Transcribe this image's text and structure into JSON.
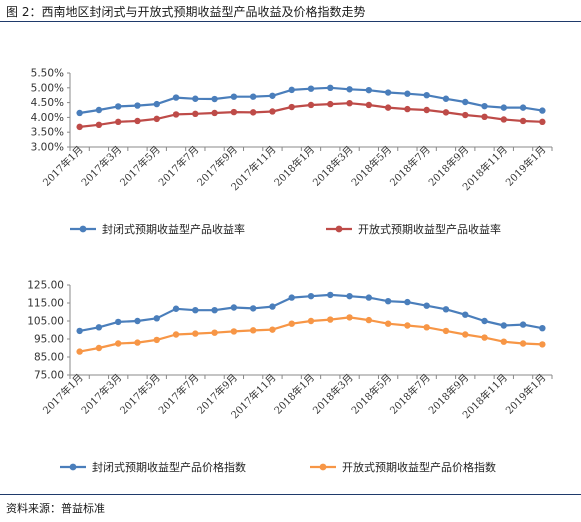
{
  "figure_title": "图 2：西南地区封闭式与开放式预期收益型产品收益及价格指数走势",
  "source": "资料来源：普益标准",
  "colors": {
    "rule": "#1f3a6b",
    "blue": "#4a7ebb",
    "red": "#be4b48",
    "orange": "#f79646"
  },
  "chart_data": [
    {
      "type": "line",
      "categories": [
        "2017年1月",
        "2017年2月",
        "2017年3月",
        "2017年4月",
        "2017年5月",
        "2017年6月",
        "2017年7月",
        "2017年8月",
        "2017年9月",
        "2017年10月",
        "2017年11月",
        "2017年12月",
        "2018年1月",
        "2018年2月",
        "2018年3月",
        "2018年4月",
        "2018年5月",
        "2018年6月",
        "2018年7月",
        "2018年8月",
        "2018年9月",
        "2018年10月",
        "2018年11月",
        "2018年12月",
        "2019年1月"
      ],
      "tick_labels": [
        "2017年1月",
        "2017年3月",
        "2017年5月",
        "2017年7月",
        "2017年9月",
        "2017年11月",
        "2018年1月",
        "2018年3月",
        "2018年5月",
        "2018年7月",
        "2018年9月",
        "2018年11月",
        "2019年1月"
      ],
      "y_ticks": [
        "3.00%",
        "3.50%",
        "4.00%",
        "4.50%",
        "5.00%",
        "5.50%"
      ],
      "ylim": [
        3.0,
        5.5
      ],
      "legend_position": "bottom",
      "series": [
        {
          "name": "封闭式预期收益型产品收益率",
          "color": "#4a7ebb",
          "values": [
            4.15,
            4.25,
            4.37,
            4.4,
            4.45,
            4.67,
            4.63,
            4.62,
            4.7,
            4.7,
            4.73,
            4.93,
            4.97,
            5.0,
            4.95,
            4.92,
            4.84,
            4.8,
            4.75,
            4.63,
            4.52,
            4.38,
            4.33,
            4.33,
            4.23
          ]
        },
        {
          "name": "开放式预期收益型产品收益率",
          "color": "#be4b48",
          "values": [
            3.68,
            3.75,
            3.85,
            3.88,
            3.95,
            4.1,
            4.12,
            4.15,
            4.18,
            4.17,
            4.2,
            4.35,
            4.42,
            4.45,
            4.48,
            4.42,
            4.33,
            4.28,
            4.25,
            4.17,
            4.08,
            4.02,
            3.93,
            3.88,
            3.85
          ]
        }
      ]
    },
    {
      "type": "line",
      "categories": [
        "2017年1月",
        "2017年2月",
        "2017年3月",
        "2017年4月",
        "2017年5月",
        "2017年6月",
        "2017年7月",
        "2017年8月",
        "2017年9月",
        "2017年10月",
        "2017年11月",
        "2017年12月",
        "2018年1月",
        "2018年2月",
        "2018年3月",
        "2018年4月",
        "2018年5月",
        "2018年6月",
        "2018年7月",
        "2018年8月",
        "2018年9月",
        "2018年10月",
        "2018年11月",
        "2018年12月",
        "2019年1月"
      ],
      "tick_labels": [
        "2017年1月",
        "2017年3月",
        "2017年5月",
        "2017年7月",
        "2017年9月",
        "2017年11月",
        "2018年1月",
        "2018年3月",
        "2018年5月",
        "2018年7月",
        "2018年9月",
        "2018年11月",
        "2019年1月"
      ],
      "y_ticks": [
        "75.00",
        "85.00",
        "95.00",
        "105.00",
        "115.00",
        "125.00"
      ],
      "ylim": [
        75,
        125
      ],
      "legend_position": "bottom",
      "series": [
        {
          "name": "封闭式预期收益型产品价格指数",
          "color": "#4a7ebb",
          "values": [
            99.5,
            101.5,
            104.5,
            105.0,
            106.5,
            111.8,
            111.0,
            111.0,
            112.5,
            112.0,
            113.0,
            118.0,
            118.8,
            119.5,
            118.8,
            118.0,
            116.0,
            115.5,
            113.5,
            111.5,
            108.5,
            105.0,
            102.5,
            103.0,
            101.0
          ]
        },
        {
          "name": "开放式预期收益型产品价格指数",
          "color": "#f79646",
          "values": [
            88.0,
            90.0,
            92.5,
            93.0,
            94.5,
            97.5,
            98.0,
            98.5,
            99.2,
            99.8,
            100.2,
            103.5,
            105.0,
            105.8,
            107.0,
            105.5,
            103.5,
            102.5,
            101.5,
            99.5,
            97.5,
            95.8,
            93.5,
            92.5,
            92.0
          ]
        }
      ]
    }
  ]
}
